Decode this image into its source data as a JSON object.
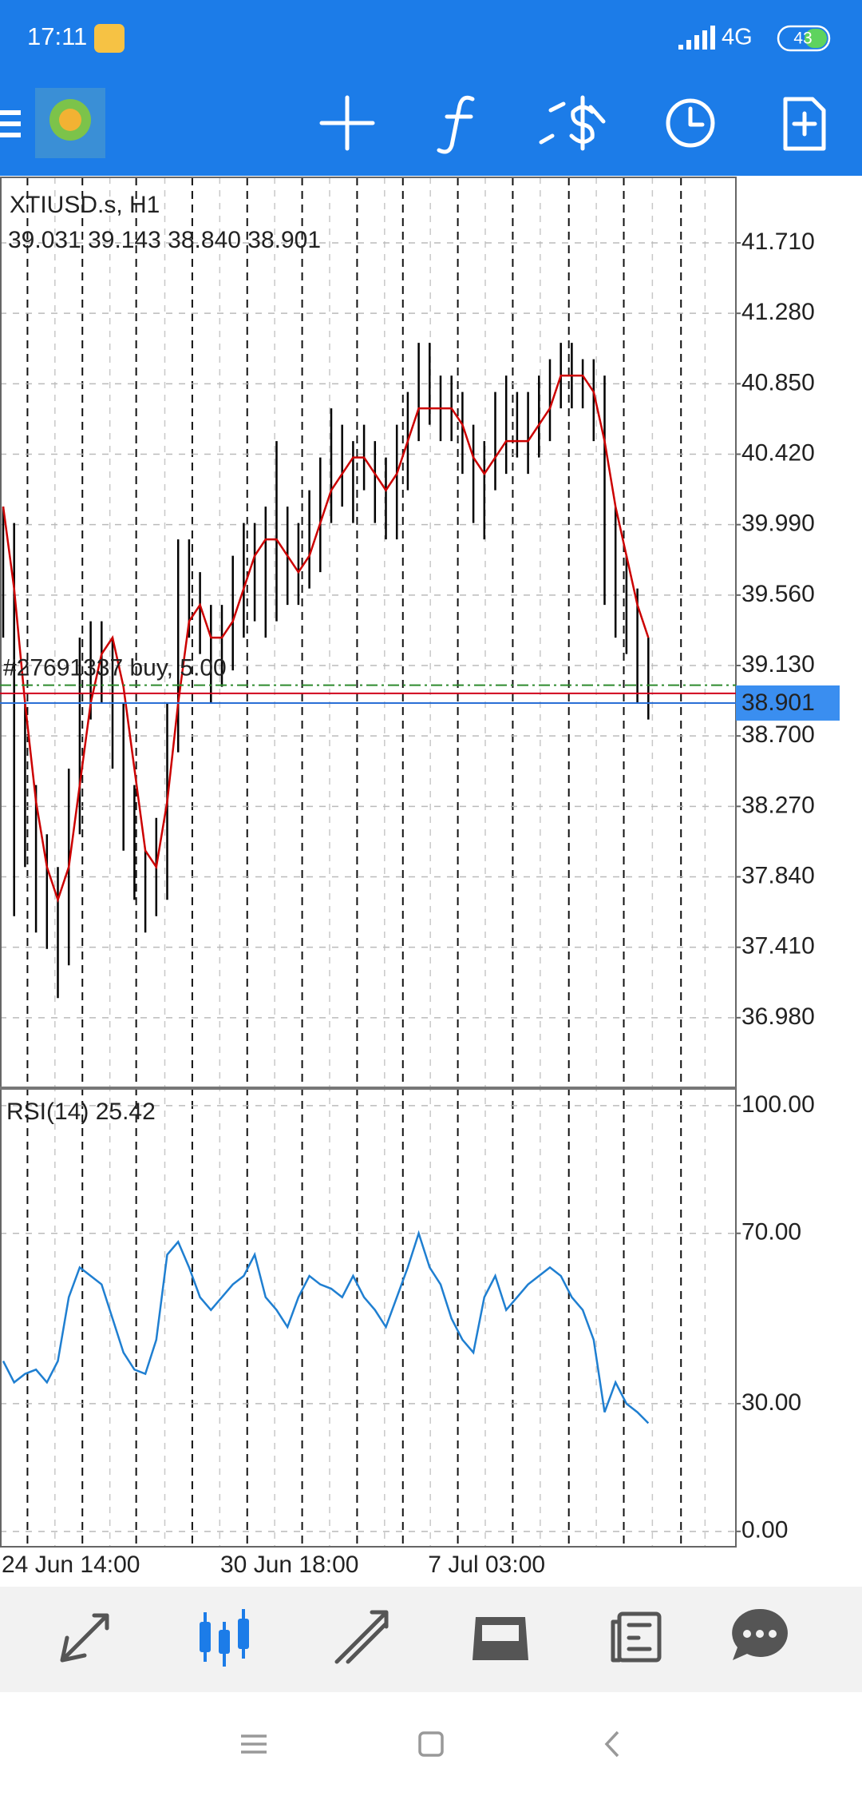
{
  "status_bar": {
    "time": "17:11",
    "network": "4G",
    "battery": "43"
  },
  "chart_data": [
    {
      "type": "candlestick",
      "title": "XTIUSD.s, H1",
      "subtitle": "39.031 39.143 38.840 38.901",
      "categories": [
        "24 Jun 14:00",
        null,
        null,
        null,
        null,
        null,
        null,
        null,
        null,
        null,
        null,
        null,
        null,
        null,
        null,
        null,
        null,
        null,
        null,
        null,
        "30 Jun 18:00",
        null,
        null,
        null,
        null,
        null,
        null,
        null,
        null,
        null,
        null,
        null,
        null,
        null,
        null,
        null,
        null,
        null,
        null,
        "7 Jul 03:00",
        null,
        null,
        null,
        null,
        null,
        null,
        null,
        null,
        null,
        null,
        null,
        null,
        null,
        null,
        null,
        null,
        null,
        null,
        null,
        null
      ],
      "high": [
        40.1,
        40.0,
        38.9,
        38.4,
        38.1,
        37.9,
        38.5,
        39.3,
        39.4,
        39.4,
        39.3,
        38.9,
        38.4,
        38.0,
        38.2,
        38.9,
        39.9,
        39.9,
        39.7,
        39.5,
        39.5,
        39.8,
        40.0,
        40.0,
        40.1,
        40.5,
        40.1,
        40.0,
        40.2,
        40.4,
        40.7,
        40.6,
        40.5,
        40.6,
        40.5,
        40.4,
        40.6,
        40.8,
        41.1,
        41.1,
        40.9,
        40.9,
        40.8,
        40.6,
        40.5,
        40.8,
        40.9,
        40.8,
        40.8,
        40.9,
        41.0,
        41.1,
        41.1,
        41.0,
        41.0,
        40.9,
        40.1,
        39.8,
        39.6,
        39.3
      ],
      "low": [
        39.3,
        37.6,
        37.9,
        37.5,
        37.4,
        37.1,
        37.3,
        38.1,
        38.8,
        38.9,
        38.5,
        38.0,
        37.7,
        37.5,
        37.6,
        37.7,
        38.6,
        39.3,
        39.2,
        38.9,
        39.0,
        39.1,
        39.3,
        39.4,
        39.3,
        39.4,
        39.5,
        39.5,
        39.6,
        39.7,
        40.0,
        40.1,
        40.0,
        40.2,
        40.0,
        39.9,
        39.9,
        40.2,
        40.5,
        40.6,
        40.5,
        40.5,
        40.3,
        40.0,
        39.9,
        40.2,
        40.3,
        40.4,
        40.3,
        40.4,
        40.5,
        40.7,
        40.7,
        40.7,
        40.5,
        39.5,
        39.3,
        39.2,
        38.9,
        38.8
      ],
      "ma": [
        40.1,
        39.6,
        38.9,
        38.3,
        37.9,
        37.7,
        37.9,
        38.4,
        38.9,
        39.2,
        39.3,
        39.0,
        38.5,
        38.0,
        37.9,
        38.3,
        38.9,
        39.4,
        39.5,
        39.3,
        39.3,
        39.4,
        39.6,
        39.8,
        39.9,
        39.9,
        39.8,
        39.7,
        39.8,
        40.0,
        40.2,
        40.3,
        40.4,
        40.4,
        40.3,
        40.2,
        40.3,
        40.5,
        40.7,
        40.7,
        40.7,
        40.7,
        40.6,
        40.4,
        40.3,
        40.4,
        40.5,
        40.5,
        40.5,
        40.6,
        40.7,
        40.9,
        40.9,
        40.9,
        40.8,
        40.5,
        40.1,
        39.8,
        39.5,
        39.3
      ],
      "color": "#000000",
      "ma_color": "#cc0000",
      "ylim": [
        36.55,
        42.11
      ],
      "yticks": [
        {
          "value": 41.71,
          "label": "41.710"
        },
        {
          "value": 41.28,
          "label": "41.280"
        },
        {
          "value": 40.85,
          "label": "40.850"
        },
        {
          "value": 40.42,
          "label": "40.420"
        },
        {
          "value": 39.99,
          "label": "39.990"
        },
        {
          "value": 39.56,
          "label": "39.560"
        },
        {
          "value": 39.13,
          "label": "39.130"
        },
        {
          "value": 38.7,
          "label": "38.700"
        },
        {
          "value": 38.27,
          "label": "38.270"
        },
        {
          "value": 37.84,
          "label": "37.840"
        },
        {
          "value": 37.41,
          "label": "37.410"
        },
        {
          "value": 36.98,
          "label": "36.980"
        }
      ],
      "price_line": {
        "value": 38.901,
        "label": "38.901"
      },
      "ask_line": 38.96,
      "order_line": {
        "value": 39.01,
        "label": "#27691337 buy, 5.00"
      },
      "grid": true
    },
    {
      "type": "line",
      "title": "RSI(14) 25.42",
      "values": [
        40,
        35,
        37,
        38,
        35,
        40,
        55,
        62,
        60,
        58,
        50,
        42,
        38,
        37,
        45,
        65,
        68,
        62,
        55,
        52,
        55,
        58,
        60,
        65,
        55,
        52,
        48,
        55,
        60,
        58,
        57,
        55,
        60,
        55,
        52,
        48,
        55,
        62,
        70,
        62,
        58,
        50,
        45,
        42,
        55,
        60,
        52,
        55,
        58,
        60,
        62,
        60,
        55,
        52,
        45,
        28,
        35,
        30,
        28,
        25.42
      ],
      "color": "#1f7fd1",
      "ylim": [
        -3.6,
        104.1
      ],
      "yticks": [
        {
          "value": 100,
          "label": "100.00"
        },
        {
          "value": 70,
          "label": "70.00"
        },
        {
          "value": 30,
          "label": "30.00"
        },
        {
          "value": 0,
          "label": "0.00"
        }
      ],
      "grid": true
    }
  ]
}
